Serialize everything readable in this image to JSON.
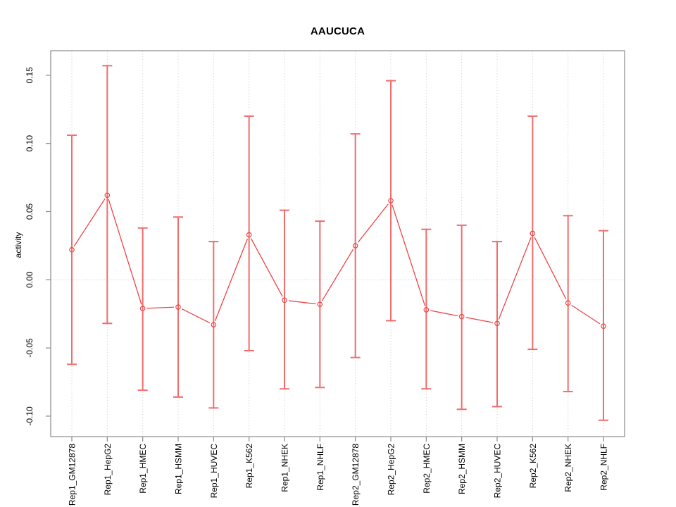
{
  "title": "AAUCUCA",
  "chart_data": {
    "type": "line",
    "title": "AAUCUCA",
    "xlabel": "",
    "ylabel": "activity",
    "legend_position": "none",
    "point_style": "open-circle",
    "grid": "dotted vertical gridline at each category and dotted horizontal line at y=0",
    "categories": [
      "Rep1_GM12878",
      "Rep1_HepG2",
      "Rep1_HMEC",
      "Rep1_HSMM",
      "Rep1_HUVEC",
      "Rep1_K562",
      "Rep1_NHEK",
      "Rep1_NHLF",
      "Rep2_GM12878",
      "Rep2_HepG2",
      "Rep2_HMEC",
      "Rep2_HSMM",
      "Rep2_HUVEC",
      "Rep2_K562",
      "Rep2_NHEK",
      "Rep2_NHLF"
    ],
    "series": [
      {
        "name": "activity",
        "values": [
          0.022,
          0.062,
          -0.021,
          -0.02,
          -0.033,
          0.033,
          -0.015,
          -0.018,
          0.025,
          0.058,
          -0.022,
          -0.027,
          -0.032,
          0.034,
          -0.017,
          -0.034
        ],
        "error_upper": [
          0.106,
          0.157,
          0.038,
          0.046,
          0.028,
          0.12,
          0.051,
          0.043,
          0.107,
          0.146,
          0.037,
          0.04,
          0.028,
          0.12,
          0.047,
          0.036
        ],
        "error_lower": [
          -0.062,
          -0.032,
          -0.081,
          -0.086,
          -0.094,
          -0.052,
          -0.08,
          -0.079,
          -0.057,
          -0.03,
          -0.08,
          -0.095,
          -0.093,
          -0.051,
          -0.082,
          -0.103
        ]
      }
    ],
    "yticks": [
      0.15,
      0.1,
      0.05,
      0.0,
      -0.05,
      -0.1
    ],
    "ylim": [
      -0.115,
      0.168
    ],
    "colors": {
      "series_line": "#ee4444",
      "error_bar": "#f26c6c",
      "gridline": "#d8d8d8",
      "axis": "#8a8a8a",
      "text": "#000000",
      "background": "#ffffff"
    }
  }
}
